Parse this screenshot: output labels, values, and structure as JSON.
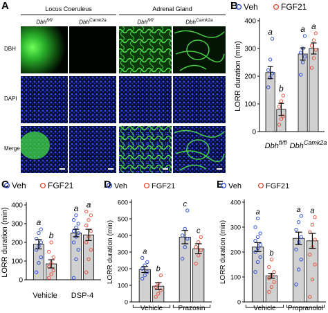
{
  "panel_a": {
    "letter": "A",
    "group_titles": [
      "Locus Coeruleus",
      "Adrenal Gland"
    ],
    "genotype_labels": [
      "Dbh",
      "fl/fl",
      "Dbh",
      "Camk2a",
      "Dbh",
      "fl/fl",
      "Dbh",
      "Camk2a"
    ],
    "row_labels": [
      "DBH",
      "DAPI",
      "Merge"
    ]
  },
  "panels": {
    "b": {
      "letter": "B"
    },
    "c": {
      "letter": "C"
    },
    "d": {
      "letter": "D"
    },
    "e": {
      "letter": "E"
    }
  },
  "colors": {
    "veh": "#1f3fd6",
    "fgf21": "#e8432c",
    "bar": "#d0d0d0",
    "dbh_green": "#3ad23a",
    "dapi_blue": "#2a3fd8"
  },
  "chart_data": [
    {
      "id": "B",
      "type": "bar",
      "ylabel": "LORR duration (min)",
      "ylim": [
        0,
        400
      ],
      "yticks": [
        0,
        100,
        200,
        300,
        400
      ],
      "legend": [
        "Veh",
        "FGF21"
      ],
      "groups": [
        {
          "label": "Dbh",
          "sup": "fl/fl"
        },
        {
          "label": "Dbh",
          "sup": "Camk2a"
        }
      ],
      "series": [
        {
          "name": "Veh",
          "values": [
            213,
            280
          ],
          "err": [
            22,
            22
          ],
          "letters": [
            "a",
            "a"
          ],
          "points": [
            [
              160,
              195,
              210,
              222,
              260,
              335
            ],
            [
              205,
              250,
              270,
              285,
              300,
              345
            ]
          ]
        },
        {
          "name": "FGF21",
          "values": [
            80,
            300
          ],
          "err": [
            22,
            20
          ],
          "letters": [
            "b",
            "a"
          ],
          "points": [
            [
              25,
              45,
              55,
              90,
              110,
              130
            ],
            [
              230,
              265,
              295,
              310,
              330,
              355
            ]
          ]
        }
      ]
    },
    {
      "id": "C",
      "type": "bar",
      "ylabel": "LORR duration (min)",
      "ylim": [
        0,
        400
      ],
      "yticks": [
        0,
        100,
        200,
        300,
        400
      ],
      "legend": [
        "Veh",
        "FGF21"
      ],
      "groups": [
        {
          "label": "Vehicle"
        },
        {
          "label": "DSP-4"
        }
      ],
      "series": [
        {
          "name": "Veh",
          "values": [
            190,
            250
          ],
          "err": [
            25,
            20
          ],
          "letters": [
            "a",
            "a"
          ],
          "points": [
            [
              40,
              90,
              120,
              160,
              180,
              200,
              220,
              250,
              270
            ],
            [
              10,
              110,
              160,
              200,
              230,
              250,
              260,
              280,
              300,
              320,
              345
            ]
          ]
        },
        {
          "name": "FGF21",
          "values": [
            85,
            240
          ],
          "err": [
            22,
            30
          ],
          "letters": [
            "b",
            "a"
          ],
          "points": [
            [
              10,
              30,
              50,
              70,
              90,
              120,
              150,
              200
            ],
            [
              40,
              110,
              160,
              200,
              230,
              260,
              290,
              320,
              345,
              365
            ]
          ]
        }
      ]
    },
    {
      "id": "D",
      "type": "bar",
      "ylabel": "LORR duration (min)",
      "ylim": [
        0,
        600
      ],
      "yticks": [
        0,
        100,
        200,
        300,
        400,
        500,
        600
      ],
      "legend": [
        "Veh",
        "FGF21"
      ],
      "groups": [
        {
          "label": "Vehicle"
        },
        {
          "label": "Prazosin"
        }
      ],
      "series": [
        {
          "name": "Veh",
          "values": [
            195,
            390
          ],
          "err": [
            18,
            40
          ],
          "letters": [
            "a",
            "c"
          ],
          "points": [
            [
              140,
              160,
              180,
              200,
              220,
              240,
              265
            ],
            [
              260,
              330,
              380,
              400,
              440,
              550
            ]
          ]
        },
        {
          "name": "FGF21",
          "values": [
            95,
            320
          ],
          "err": [
            20,
            30
          ],
          "letters": [
            "b",
            "c"
          ],
          "points": [
            [
              30,
              50,
              70,
              90,
              110,
              160
            ],
            [
              230,
              280,
              310,
              330,
              360,
              390
            ]
          ]
        }
      ]
    },
    {
      "id": "E",
      "type": "bar",
      "ylabel": "LORR duration (min)",
      "ylim": [
        0,
        400
      ],
      "yticks": [
        0,
        100,
        200,
        300,
        400
      ],
      "legend": [
        "Veh",
        "FGF21"
      ],
      "groups": [
        {
          "label": "Vehicle"
        },
        {
          "label": "Propranolol"
        }
      ],
      "series": [
        {
          "name": "Veh",
          "values": [
            220,
            255
          ],
          "err": [
            18,
            25
          ],
          "letters": [
            "a",
            "a"
          ],
          "points": [
            [
              120,
              160,
              180,
              200,
              215,
              230,
              245,
              260,
              275,
              300,
              335
            ],
            [
              70,
              130,
              170,
              210,
              240,
              260,
              290,
              320,
              345
            ]
          ]
        },
        {
          "name": "FGF21",
          "values": [
            105,
            245
          ],
          "err": [
            10,
            30
          ],
          "letters": [
            "b",
            "a"
          ],
          "points": [
            [
              40,
              60,
              80,
              95,
              105,
              120,
              140,
              170
            ],
            [
              20,
              90,
              150,
              190,
              220,
              250,
              280,
              310,
              340
            ]
          ]
        }
      ]
    }
  ]
}
